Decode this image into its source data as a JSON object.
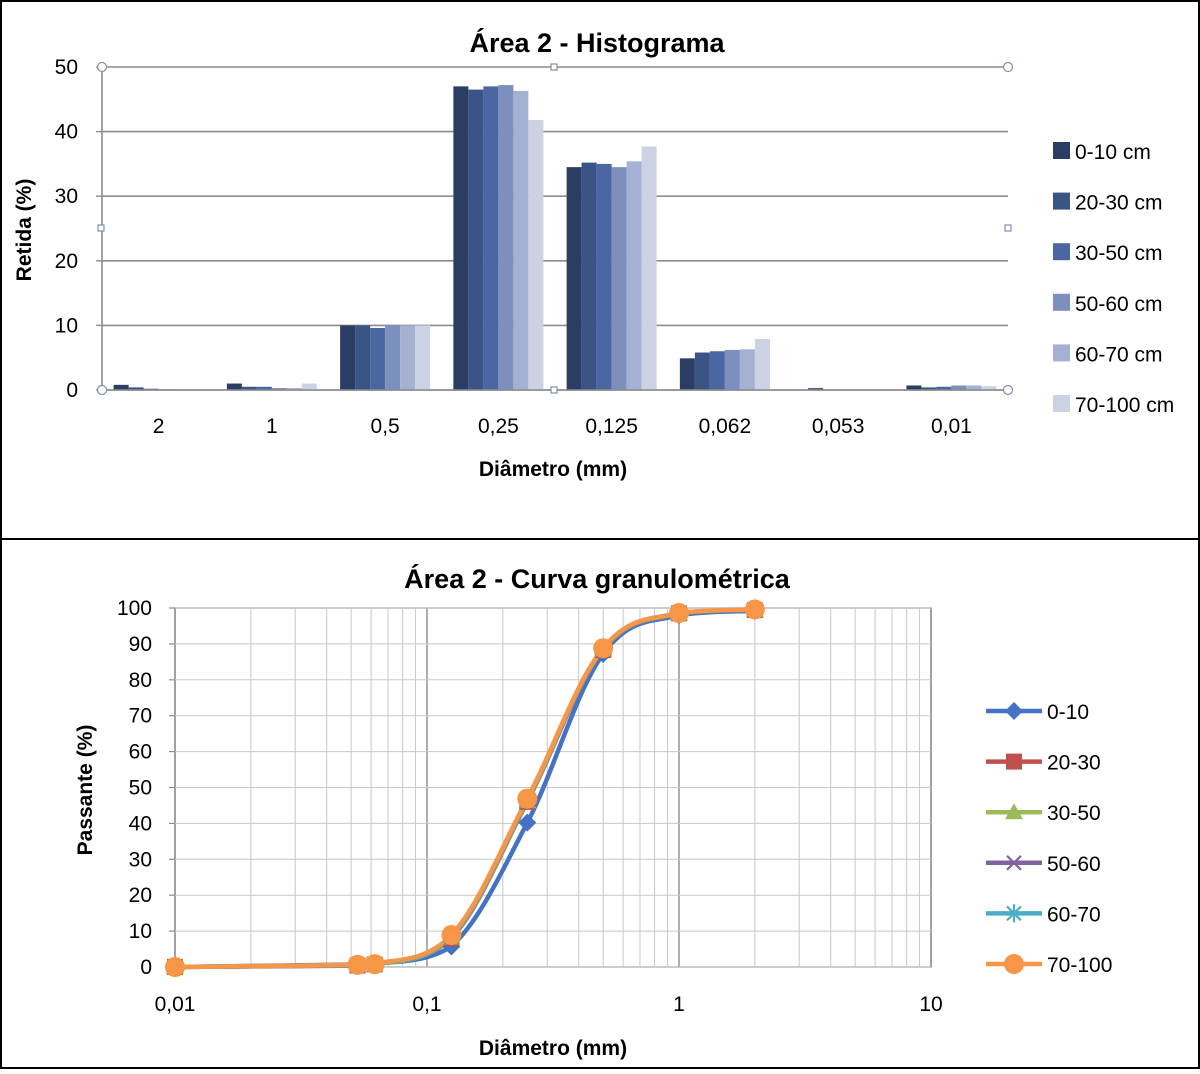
{
  "chart_data": [
    {
      "type": "bar",
      "title": "Área 2 - Histograma",
      "xlabel": "Diâmetro (mm)",
      "ylabel": "Retida (%)",
      "ylim": [
        0,
        50
      ],
      "yticks": [
        "0",
        "10",
        "20",
        "30",
        "40",
        "50"
      ],
      "grid": "horizontal",
      "legend_position": "right",
      "categories": [
        "2",
        "1",
        "0,5",
        "0,25",
        "0,125",
        "0,062",
        "0,053",
        "0,01"
      ],
      "series": [
        {
          "name": "0-10 cm",
          "color": "#2b3d63",
          "values": [
            0.8,
            1.0,
            10.0,
            47.0,
            34.5,
            4.9,
            0.0,
            0.7
          ]
        },
        {
          "name": "20-30 cm",
          "color": "#3b5486",
          "values": [
            0.4,
            0.5,
            10.0,
            46.5,
            35.2,
            5.8,
            0.3,
            0.4
          ]
        },
        {
          "name": "30-50 cm",
          "color": "#4a67a1",
          "values": [
            0.2,
            0.5,
            9.6,
            47.0,
            35.0,
            6.0,
            0.0,
            0.5
          ]
        },
        {
          "name": "50-60 cm",
          "color": "#7d8fbd",
          "values": [
            0.1,
            0.3,
            10.0,
            47.2,
            34.5,
            6.2,
            0.0,
            0.7
          ]
        },
        {
          "name": "60-70 cm",
          "color": "#a5b1d3",
          "values": [
            0.0,
            0.3,
            10.0,
            46.3,
            35.4,
            6.3,
            0.0,
            0.7
          ]
        },
        {
          "name": "70-100 cm",
          "color": "#ccd1e4",
          "values": [
            0.0,
            1.0,
            10.0,
            41.8,
            37.7,
            7.9,
            0.0,
            0.6
          ]
        }
      ]
    },
    {
      "type": "line",
      "title": "Área 2 - Curva granulométrica",
      "xlabel": "Diâmetro (mm)",
      "ylabel": "Passante (%)",
      "xscale": "log",
      "xlim": [
        0.01,
        10
      ],
      "ylim": [
        0,
        100
      ],
      "xticks": [
        "0,01",
        "0,1",
        "1",
        "10"
      ],
      "yticks": [
        "0",
        "10",
        "20",
        "30",
        "40",
        "50",
        "60",
        "70",
        "80",
        "90",
        "100"
      ],
      "grid": "both",
      "legend_position": "right",
      "x": [
        0.01,
        0.053,
        0.062,
        0.125,
        0.25,
        0.5,
        1,
        2
      ],
      "series": [
        {
          "name": "0-10",
          "color": "#4472c4",
          "marker": "diamond",
          "values": [
            0,
            0.7,
            0.8,
            5.7,
            40.2,
            87.2,
            98.0,
            99.2
          ]
        },
        {
          "name": "20-30",
          "color": "#c0504d",
          "marker": "square",
          "values": [
            0,
            0.4,
            0.7,
            8.0,
            46.0,
            88.3,
            98.5,
            99.4
          ]
        },
        {
          "name": "30-50",
          "color": "#9bbb59",
          "marker": "triangle",
          "values": [
            0,
            0.5,
            0.6,
            8.2,
            46.2,
            88.4,
            98.5,
            99.5
          ]
        },
        {
          "name": "50-60",
          "color": "#8064a2",
          "marker": "x",
          "values": [
            0,
            0.5,
            0.7,
            8.5,
            46.5,
            88.5,
            98.6,
            99.5
          ]
        },
        {
          "name": "60-70",
          "color": "#4bacc6",
          "marker": "star",
          "values": [
            0,
            0.5,
            0.7,
            8.6,
            46.6,
            88.6,
            98.6,
            99.5
          ]
        },
        {
          "name": "70-100",
          "color": "#f79646",
          "marker": "circle",
          "values": [
            0,
            0.6,
            0.8,
            8.9,
            46.9,
            88.8,
            98.6,
            99.6
          ]
        }
      ]
    }
  ]
}
